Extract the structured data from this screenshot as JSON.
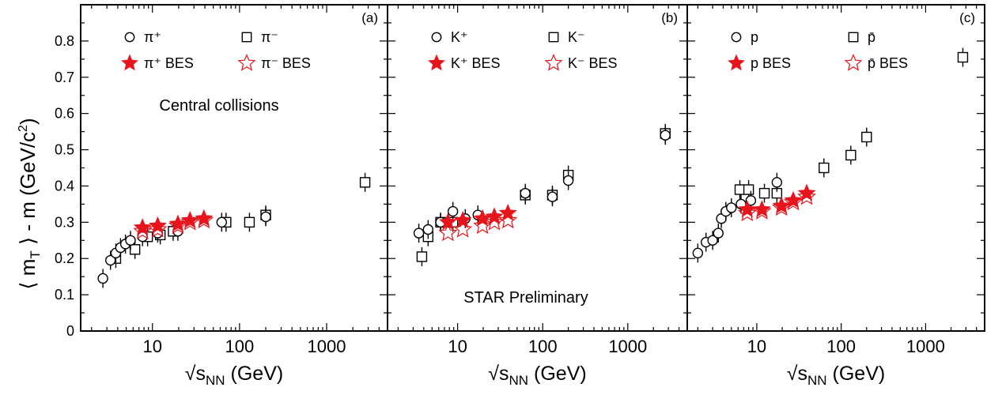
{
  "chart_data": [
    {
      "type": "scatter",
      "panel_tag": "(a)",
      "x_scale": "log",
      "xlim": [
        1.5,
        5000
      ],
      "ylim": [
        0,
        0.9
      ],
      "xticks": [
        10,
        100,
        1000
      ],
      "xtick_labels": [
        "10",
        "100",
        "1000"
      ],
      "yticks": [
        0,
        0.1,
        0.2,
        0.3,
        0.4,
        0.5,
        0.6,
        0.7,
        0.8
      ],
      "ytick_labels": [
        "0",
        "0.1",
        "0.2",
        "0.3",
        "0.4",
        "0.5",
        "0.6",
        "0.7",
        "0.8"
      ],
      "legend_position": "top",
      "annotation": "Central collisions",
      "series": [
        {
          "name": "π⁺",
          "marker": "circle-open",
          "color": "#000000",
          "x": [
            2.7,
            3.3,
            3.8,
            4.3,
            4.9,
            5.6,
            7.7,
            11.5,
            19.6,
            62.4,
            200
          ],
          "y": [
            0.145,
            0.195,
            0.215,
            0.23,
            0.24,
            0.25,
            0.26,
            0.27,
            0.275,
            0.3,
            0.315
          ]
        },
        {
          "name": "π⁻",
          "marker": "square-open",
          "color": "#000000",
          "x": [
            3.8,
            6.3,
            8.8,
            12.3,
            17.3,
            70,
            130,
            200,
            2760
          ],
          "y": [
            0.2,
            0.225,
            0.26,
            0.265,
            0.275,
            0.3,
            0.3,
            0.32,
            0.41
          ]
        },
        {
          "name": "π⁺ BES",
          "marker": "star-filled",
          "color": "#e8141c",
          "x": [
            7.7,
            11.5,
            19.6,
            27,
            39
          ],
          "y": [
            0.285,
            0.29,
            0.295,
            0.305,
            0.31
          ]
        },
        {
          "name": "π⁻ BES",
          "marker": "star-open",
          "color": "#e8141c",
          "x": [
            7.7,
            11.5,
            19.6,
            27,
            39
          ],
          "y": [
            0.275,
            0.28,
            0.29,
            0.3,
            0.305
          ]
        }
      ]
    },
    {
      "type": "scatter",
      "panel_tag": "(b)",
      "x_scale": "log",
      "xlim": [
        1.5,
        5000
      ],
      "ylim": [
        0,
        0.9
      ],
      "xticks": [
        10,
        100,
        1000
      ],
      "xtick_labels": [
        "10",
        "100",
        "1000"
      ],
      "legend_position": "top",
      "annotation": "STAR Preliminary",
      "series": [
        {
          "name": "K⁺",
          "marker": "circle-open",
          "color": "#000000",
          "x": [
            3.5,
            4.5,
            6.3,
            8.8,
            12.3,
            17.3,
            62.4,
            130,
            200,
            2760
          ],
          "y": [
            0.27,
            0.28,
            0.3,
            0.33,
            0.31,
            0.32,
            0.38,
            0.37,
            0.415,
            0.54
          ]
        },
        {
          "name": "K⁻",
          "marker": "square-open",
          "color": "#000000",
          "x": [
            3.8,
            4.5,
            6.3,
            8.8,
            62.4,
            130,
            200,
            2760
          ],
          "y": [
            0.205,
            0.26,
            0.3,
            0.3,
            0.375,
            0.375,
            0.43,
            0.545
          ]
        },
        {
          "name": "K⁺ BES",
          "marker": "star-filled",
          "color": "#e8141c",
          "x": [
            7.7,
            11.5,
            19.6,
            27,
            39
          ],
          "y": [
            0.3,
            0.305,
            0.31,
            0.315,
            0.325
          ]
        },
        {
          "name": "K⁻ BES",
          "marker": "star-open",
          "color": "#e8141c",
          "x": [
            7.7,
            11.5,
            19.6,
            27,
            39
          ],
          "y": [
            0.27,
            0.28,
            0.29,
            0.3,
            0.305
          ]
        }
      ]
    },
    {
      "type": "scatter",
      "panel_tag": "(c)",
      "x_scale": "log",
      "xlim": [
        1.5,
        5000
      ],
      "ylim": [
        0,
        0.9
      ],
      "xticks": [
        10,
        100,
        1000
      ],
      "xtick_labels": [
        "10",
        "100",
        "1000"
      ],
      "legend_position": "top",
      "series": [
        {
          "name": "p",
          "marker": "circle-open",
          "color": "#000000",
          "x": [
            2.0,
            2.5,
            3.0,
            3.5,
            3.8,
            4.3,
            5.0,
            6.5,
            8.5,
            17.3
          ],
          "y": [
            0.215,
            0.245,
            0.25,
            0.27,
            0.31,
            0.33,
            0.34,
            0.35,
            0.36,
            0.41
          ]
        },
        {
          "name": "p̄",
          "marker": "square-open",
          "color": "#000000",
          "x": [
            6.3,
            8.0,
            12.3,
            17.3,
            62.4,
            130,
            200,
            2760
          ],
          "y": [
            0.39,
            0.39,
            0.38,
            0.38,
            0.45,
            0.485,
            0.535,
            0.755
          ]
        },
        {
          "name": "p BES",
          "marker": "star-filled",
          "color": "#e8141c",
          "x": [
            7.7,
            11.5,
            19.6,
            27,
            39
          ],
          "y": [
            0.335,
            0.335,
            0.345,
            0.36,
            0.38
          ]
        },
        {
          "name": "p̄ BES",
          "marker": "star-open",
          "color": "#e8141c",
          "x": [
            7.7,
            11.5,
            19.6,
            27,
            39
          ],
          "y": [
            0.325,
            0.33,
            0.34,
            0.355,
            0.37
          ]
        }
      ]
    }
  ],
  "labels": {
    "ylabel_main": "⟨ m",
    "ylabel_sub": "T",
    "ylabel_rest": " ⟩ - m (GeV/c",
    "ylabel_sup": "2",
    "ylabel_close": ")",
    "xlabel_root": "√",
    "xlabel_s": "s",
    "xlabel_sub": "NN",
    "xlabel_unit": " (GeV)"
  }
}
